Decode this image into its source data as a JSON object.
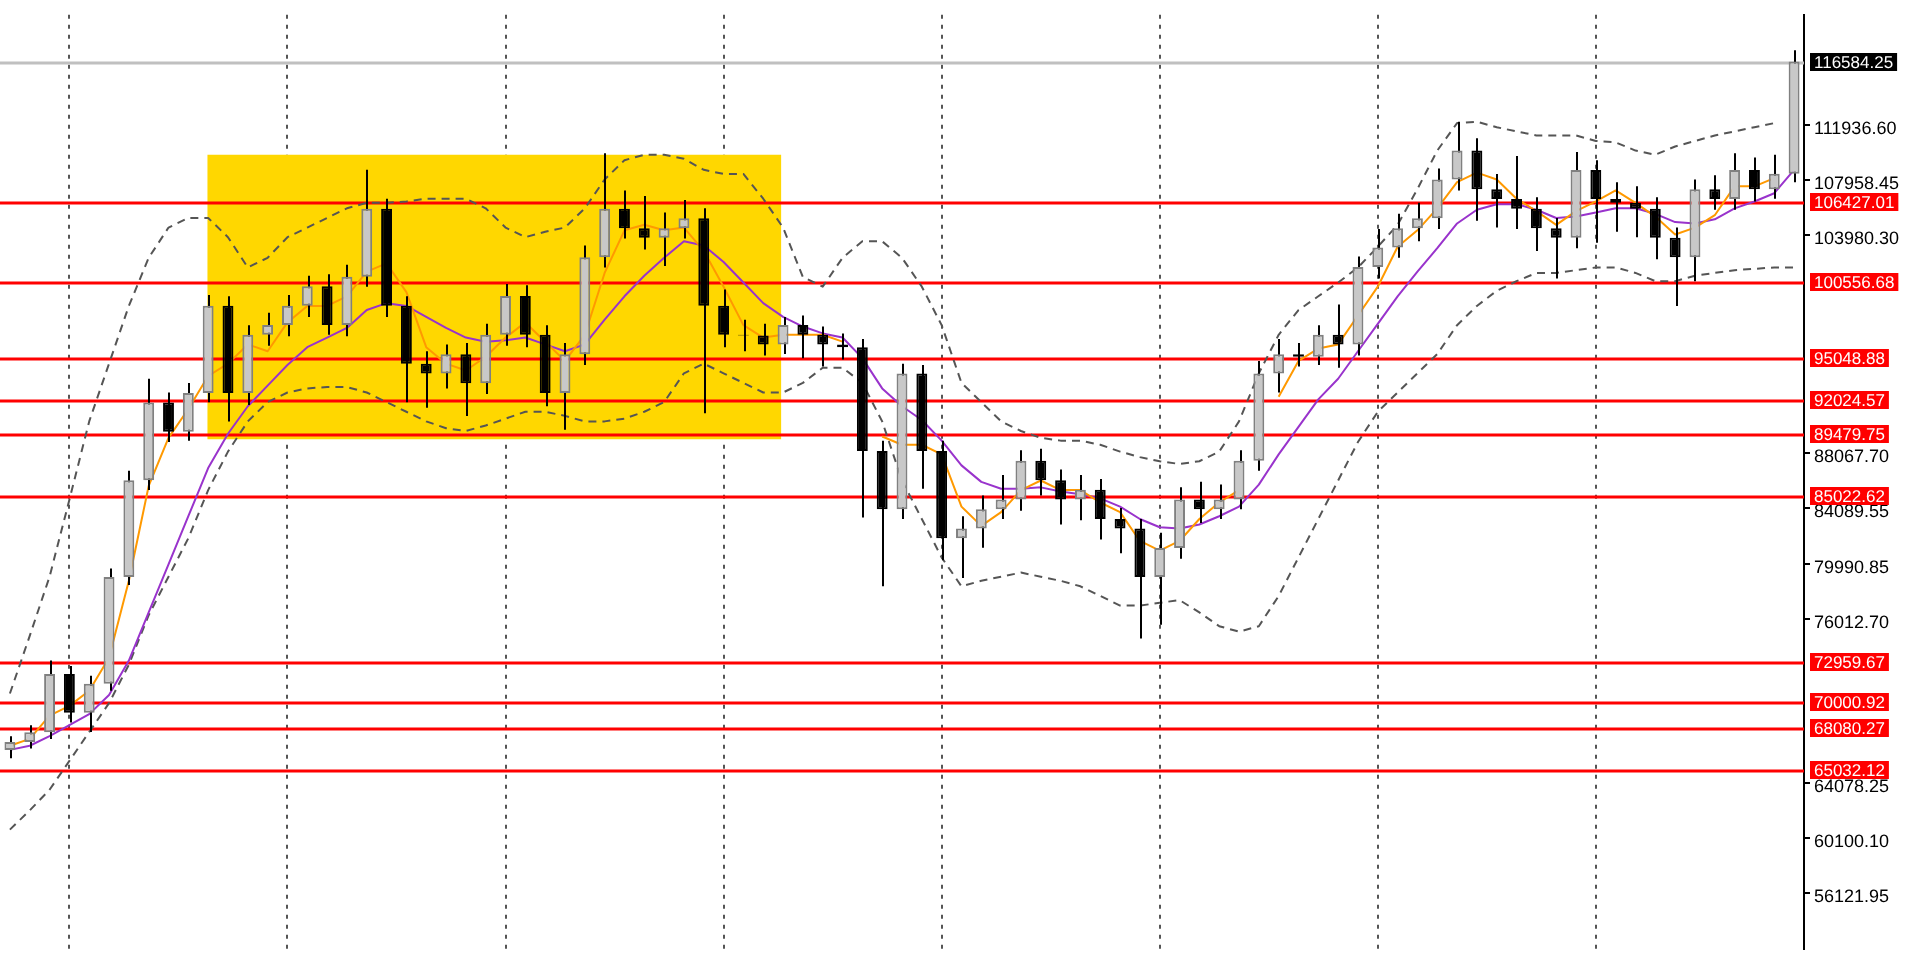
{
  "chart_data": {
    "type": "candlestick",
    "categories": [
      null,
      null,
      null,
      null,
      null,
      null,
      null,
      null,
      null,
      null,
      null,
      null,
      null,
      null,
      null,
      null,
      null,
      null,
      null,
      null,
      null,
      null,
      null,
      null,
      null,
      null,
      null,
      null,
      null,
      null,
      null,
      null,
      null,
      null,
      null,
      null,
      null,
      null,
      null,
      null,
      null,
      null,
      null,
      null,
      null,
      null,
      null,
      null,
      null,
      null,
      null,
      null,
      null,
      null,
      null,
      null,
      null,
      null,
      null,
      null,
      null,
      null,
      null,
      null,
      null,
      null,
      null,
      null,
      null,
      null,
      null,
      null,
      null,
      null,
      null,
      null,
      null,
      null,
      null,
      null,
      null,
      null,
      null,
      null,
      null,
      null,
      null,
      null,
      null,
      null,
      null
    ],
    "ohlc": [
      [
        66500,
        67500,
        65900,
        67080
      ],
      [
        67080,
        68300,
        66600,
        67790
      ],
      [
        67790,
        73000,
        67300,
        72020
      ],
      [
        72020,
        72600,
        68500,
        69200
      ],
      [
        69200,
        71900,
        67800,
        71310
      ],
      [
        71310,
        79700,
        70800,
        79070
      ],
      [
        79070,
        86800,
        78500,
        86120
      ],
      [
        86120,
        93500,
        85400,
        91770
      ],
      [
        91770,
        92500,
        88900,
        89650
      ],
      [
        89650,
        93200,
        89000,
        92470
      ],
      [
        92470,
        99600,
        91800,
        98820
      ],
      [
        98820,
        99500,
        90400,
        92470
      ],
      [
        92470,
        97400,
        91600,
        96700
      ],
      [
        96700,
        98300,
        95900,
        97410
      ],
      [
        97410,
        99600,
        96600,
        98820
      ],
      [
        98820,
        101000,
        98000,
        100230
      ],
      [
        100230,
        101100,
        96700,
        97410
      ],
      [
        97410,
        101800,
        96600,
        100930
      ],
      [
        100930,
        108700,
        100200,
        105870
      ],
      [
        105870,
        106600,
        98000,
        98820
      ],
      [
        98820,
        99500,
        91800,
        94590
      ],
      [
        94590,
        95500,
        91400,
        93880
      ],
      [
        93880,
        96000,
        92800,
        95290
      ],
      [
        95290,
        96100,
        90800,
        93180
      ],
      [
        93180,
        97500,
        92400,
        96700
      ],
      [
        96700,
        100400,
        95900,
        99520
      ],
      [
        99520,
        100300,
        95800,
        96700
      ],
      [
        96700,
        97400,
        91500,
        92470
      ],
      [
        92470,
        96100,
        89800,
        95290
      ],
      [
        95290,
        103200,
        94500,
        102350
      ],
      [
        102350,
        109900,
        101600,
        105870
      ],
      [
        105870,
        107200,
        103700,
        104460
      ],
      [
        104460,
        106800,
        102900,
        103760
      ],
      [
        103760,
        105600,
        101700,
        104460
      ],
      [
        104460,
        106500,
        103700,
        105170
      ],
      [
        105170,
        105900,
        91000,
        98820
      ],
      [
        98820,
        100000,
        95800,
        96700
      ],
      [
        96700,
        97800,
        95500,
        96650
      ],
      [
        96650,
        97500,
        95200,
        95990
      ],
      [
        95990,
        98000,
        95300,
        97410
      ],
      [
        97410,
        98100,
        95000,
        96700
      ],
      [
        96700,
        97300,
        94400,
        95990
      ],
      [
        95990,
        96800,
        94900,
        95800
      ],
      [
        95800,
        96400,
        83400,
        88240
      ],
      [
        88240,
        89000,
        78400,
        84010
      ],
      [
        84010,
        94600,
        83300,
        93880
      ],
      [
        93880,
        94500,
        85500,
        88240
      ],
      [
        88240,
        89000,
        80300,
        81890
      ],
      [
        81890,
        83500,
        79000,
        82600
      ],
      [
        82600,
        85000,
        81200,
        84010
      ],
      [
        84010,
        86500,
        83300,
        84710
      ],
      [
        84710,
        88300,
        83900,
        87530
      ],
      [
        87530,
        88400,
        85000,
        86120
      ],
      [
        86120,
        86900,
        82900,
        84710
      ],
      [
        84710,
        86500,
        83200,
        85420
      ],
      [
        85420,
        86200,
        81800,
        83300
      ],
      [
        83300,
        84100,
        80800,
        82600
      ],
      [
        82600,
        83300,
        74600,
        79070
      ],
      [
        79070,
        82300,
        75600,
        81190
      ],
      [
        81190,
        85600,
        80400,
        84710
      ],
      [
        84710,
        86000,
        83000,
        84010
      ],
      [
        84010,
        85800,
        83300,
        84710
      ],
      [
        84710,
        88300,
        84000,
        87530
      ],
      [
        87530,
        94800,
        86800,
        93880
      ],
      [
        93880,
        96400,
        92500,
        95290
      ],
      [
        95290,
        96100,
        94400,
        95100
      ],
      [
        95100,
        97400,
        94500,
        96700
      ],
      [
        96700,
        98900,
        94300,
        95990
      ],
      [
        95990,
        102400,
        95200,
        101640
      ],
      [
        101640,
        104400,
        100800,
        103050
      ],
      [
        103050,
        105500,
        102300,
        104460
      ],
      [
        104460,
        106300,
        103500,
        105170
      ],
      [
        105170,
        108800,
        104400,
        107990
      ],
      [
        107990,
        112200,
        107200,
        110100
      ],
      [
        110100,
        111000,
        105000,
        107280
      ],
      [
        107280,
        108400,
        104500,
        106580
      ],
      [
        106580,
        109700,
        104400,
        105870
      ],
      [
        105870,
        106700,
        102800,
        104460
      ],
      [
        104460,
        105200,
        100800,
        103760
      ],
      [
        103760,
        110000,
        103000,
        108690
      ],
      [
        108690,
        109400,
        103400,
        106580
      ],
      [
        106580,
        107800,
        104200,
        106300
      ],
      [
        106300,
        107500,
        103800,
        105870
      ],
      [
        105870,
        106700,
        102200,
        103760
      ],
      [
        103760,
        104500,
        98800,
        102350
      ],
      [
        102350,
        108000,
        100600,
        107280
      ],
      [
        107280,
        108300,
        105800,
        106580
      ],
      [
        106580,
        109900,
        105800,
        108690
      ],
      [
        108690,
        109600,
        106400,
        107280
      ],
      [
        107280,
        109800,
        106600,
        108410
      ],
      [
        108410,
        117400,
        107800,
        116584.25
      ]
    ],
    "series": [
      {
        "type": "line",
        "color": "#ff9900",
        "values": [
          66800,
          67300,
          69000,
          69700,
          70800,
          73200,
          78800,
          85700,
          89200,
          91300,
          93700,
          94600,
          96000,
          95500,
          97600,
          98800,
          98800,
          99500,
          101300,
          101900,
          99800,
          95800,
          94600,
          94100,
          95100,
          96500,
          97600,
          96200,
          94800,
          96700,
          101200,
          104300,
          104700,
          104300,
          104500,
          102800,
          100200,
          97400,
          96500,
          96700,
          96700,
          96700,
          96200,
          null,
          89300,
          88700,
          88700,
          88000,
          84200,
          82800,
          83800,
          85400,
          86100,
          85400,
          85400,
          84500,
          83800,
          81700,
          81000,
          81700,
          83300,
          84500,
          85400,
          null,
          92200,
          94800,
          95700,
          96000,
          98100,
          100200,
          103100,
          104300,
          105900,
          107800,
          108500,
          108000,
          106600,
          105700,
          104700,
          105700,
          106400,
          107200,
          106300,
          105300,
          104000,
          104500,
          105400,
          107500,
          107500,
          108100,
          null
        ]
      },
      {
        "type": "line",
        "color": "#9933cc",
        "values": [
          66500,
          66800,
          67500,
          68300,
          69100,
          70500,
          73000,
          76500,
          80000,
          83500,
          87000,
          89500,
          91500,
          93000,
          94500,
          95800,
          96500,
          97200,
          98500,
          99000,
          98800,
          98000,
          97200,
          96500,
          96200,
          96300,
          96500,
          96000,
          95500,
          96000,
          97800,
          99500,
          101000,
          102300,
          103500,
          103200,
          102000,
          100500,
          99000,
          98000,
          97300,
          96800,
          96500,
          95000,
          92800,
          91500,
          90500,
          89000,
          87200,
          86000,
          85500,
          85500,
          85600,
          85300,
          85100,
          84800,
          84200,
          83300,
          82700,
          82600,
          82900,
          83500,
          84200,
          85800,
          88000,
          90000,
          92000,
          93500,
          95500,
          97500,
          99500,
          101300,
          103000,
          104800,
          105800,
          106200,
          106200,
          105800,
          105200,
          105300,
          105600,
          105900,
          105900,
          105500,
          104900,
          104800,
          105100,
          105900,
          106400,
          107000,
          108700
        ]
      },
      {
        "type": "line",
        "color": "#555555",
        "line_style": "dashed",
        "values": [
          70600,
          74800,
          79100,
          84700,
          90400,
          94600,
          98800,
          102300,
          104500,
          105200,
          105200,
          103800,
          101600,
          102300,
          103800,
          104500,
          105200,
          105900,
          106300,
          106300,
          106400,
          106600,
          106600,
          106600,
          105900,
          104500,
          103800,
          104200,
          104500,
          105900,
          108000,
          109400,
          109800,
          109800,
          109500,
          108700,
          108400,
          108400,
          106600,
          104500,
          100900,
          100200,
          102300,
          103500,
          103500,
          102300,
          100200,
          97400,
          93200,
          91800,
          90400,
          89700,
          89200,
          89000,
          89000,
          88700,
          88200,
          87800,
          87500,
          87300,
          87500,
          88200,
          90400,
          93900,
          96700,
          98500,
          99500,
          100500,
          101600,
          103100,
          104700,
          107300,
          110100,
          112100,
          112200,
          111800,
          111500,
          111200,
          111200,
          111200,
          110800,
          110700,
          110100,
          109800,
          110400,
          110800,
          111200,
          111500,
          111800,
          112100,
          null
        ]
      },
      {
        "type": "line",
        "color": "#555555",
        "line_style": "dashed",
        "values": [
          60700,
          62100,
          63600,
          65700,
          67800,
          69900,
          72700,
          76300,
          79100,
          81900,
          85400,
          88200,
          90400,
          91800,
          92500,
          92800,
          92900,
          92900,
          92500,
          91800,
          91100,
          90400,
          89900,
          89700,
          90100,
          90600,
          91100,
          91100,
          90800,
          90400,
          90400,
          90600,
          91100,
          91800,
          93900,
          94600,
          93900,
          93200,
          92500,
          92500,
          93200,
          94300,
          94300,
          93200,
          90400,
          86100,
          83300,
          80500,
          78400,
          78800,
          79100,
          79400,
          79100,
          78800,
          78400,
          77700,
          77000,
          77000,
          77200,
          77400,
          76500,
          75500,
          75100,
          75500,
          77700,
          80500,
          83300,
          86100,
          88900,
          91100,
          92500,
          93900,
          95300,
          97400,
          98800,
          99900,
          100600,
          101200,
          101200,
          101400,
          101600,
          101600,
          101200,
          100600,
          100600,
          101000,
          101200,
          101400,
          101500,
          101600,
          101600
        ]
      }
    ],
    "ylim": [
      52000,
      119980
    ],
    "yticks": [
      {
        "value": 111936.6,
        "label": "111936.60"
      },
      {
        "value": 107958.45,
        "label": "107958.45"
      },
      {
        "value": 103980.3,
        "label": "103980.30"
      },
      {
        "value": 88067.7,
        "label": "88067.70"
      },
      {
        "value": 84089.55,
        "label": "84089.55"
      },
      {
        "value": 79990.85,
        "label": "79990.85"
      },
      {
        "value": 76012.7,
        "label": "76012.70"
      },
      {
        "value": 64078.25,
        "label": "64078.25"
      },
      {
        "value": 60100.1,
        "label": "60100.10"
      },
      {
        "value": 56121.95,
        "label": "56121.95"
      }
    ],
    "ref_lines": [
      {
        "axis": "y",
        "value": 116584.25,
        "label": "116584.25",
        "color": "#c0c0c0"
      },
      {
        "axis": "y",
        "value": 106427.01,
        "label": "106427.01",
        "color": "#ff0000"
      },
      {
        "axis": "y",
        "value": 100556.68,
        "label": "100556.68",
        "color": "#ff0000"
      },
      {
        "axis": "y",
        "value": 95048.88,
        "label": "95048.88",
        "color": "#ff0000"
      },
      {
        "axis": "y",
        "value": 92024.57,
        "label": "92024.57",
        "color": "#ff0000"
      },
      {
        "axis": "y",
        "value": 89479.75,
        "label": "89479.75",
        "color": "#ff0000"
      },
      {
        "axis": "y",
        "value": 85022.62,
        "label": "85022.62",
        "color": "#ff0000"
      },
      {
        "axis": "y",
        "value": 72959.67,
        "label": "72959.67",
        "color": "#ff0000"
      },
      {
        "axis": "y",
        "value": 70000.92,
        "label": "70000.92",
        "color": "#ff0000"
      },
      {
        "axis": "y",
        "value": 68080.27,
        "label": "68080.27",
        "color": "#ff0000"
      },
      {
        "axis": "y",
        "value": 65032.12,
        "label": "65032.12",
        "color": "#ff0000"
      }
    ],
    "bands": [
      {
        "axis": "y",
        "from": 89100,
        "to": 109800,
        "color": "#ffd700"
      }
    ],
    "grid": "x",
    "legend": false,
    "tick_labels": "y",
    "marker": "none"
  }
}
